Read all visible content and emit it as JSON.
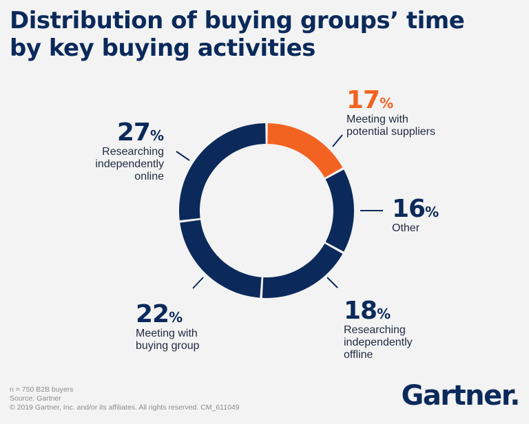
{
  "title": {
    "line1": "Distribution of buying groups’ time",
    "line2": "by key buying activities"
  },
  "colors": {
    "navy": "#0b2a5b",
    "orange": "#f26322",
    "background": "#f3f3f3"
  },
  "chart_data": {
    "type": "pie",
    "title": "Distribution of buying groups’ time by key buying activities",
    "categories": [
      "Meeting with potential suppliers",
      "Other",
      "Researching independently offline",
      "Meeting with buying group",
      "Researching independently online"
    ],
    "values": [
      17,
      16,
      18,
      22,
      27
    ],
    "unit": "%",
    "highlight": "Meeting with potential suppliers",
    "style": "donut",
    "start": "top, clockwise"
  },
  "labels": {
    "suppliers": {
      "pct": "17",
      "sym": "%",
      "line1": "Meeting with",
      "line2": "potential suppliers"
    },
    "other": {
      "pct": "16",
      "sym": "%",
      "line1": "Other"
    },
    "offline": {
      "pct": "18",
      "sym": "%",
      "line1": "Researching",
      "line2": "independently",
      "line3": "offline"
    },
    "group": {
      "pct": "22",
      "sym": "%",
      "line1": "Meeting with",
      "line2": "buying group"
    },
    "online": {
      "pct": "27",
      "sym": "%",
      "line1": "Researching",
      "line2": "independently",
      "line3": "online"
    }
  },
  "footer": {
    "line1": "n = 750 B2B buyers",
    "line2": "Source: Gartner",
    "line3": "© 2019 Gartner, Inc. and/or its affiliates. All rights reserved. CM_611049"
  },
  "logo": {
    "text": "Gartner",
    "dot": "."
  }
}
